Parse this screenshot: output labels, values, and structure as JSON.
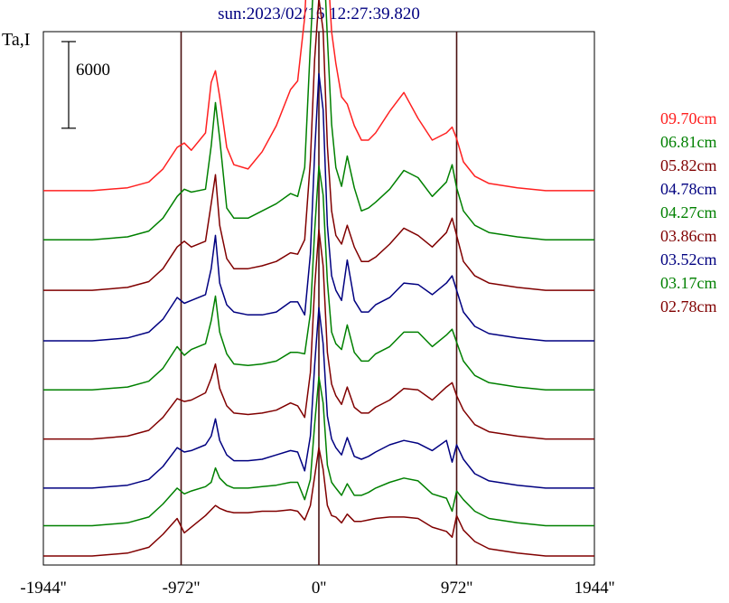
{
  "chart_data": {
    "type": "line",
    "title": "sun:2023/02/16 12:27:39.820",
    "title_color": "#000080",
    "ylabel": "Ta,I",
    "xlabel": "",
    "scale_bar": {
      "label": "6000",
      "value": 6000
    },
    "xlim": [
      -1944,
      1944
    ],
    "ylim": [
      0,
      36000
    ],
    "grid": false,
    "legend_position": "right",
    "x_ticks": [
      {
        "value": -1944,
        "label": "-1944''"
      },
      {
        "value": -972,
        "label": "-972''"
      },
      {
        "value": 0,
        "label": "0''"
      },
      {
        "value": 972,
        "label": "972''"
      },
      {
        "value": 1944,
        "label": "1944''"
      }
    ],
    "vlines": [
      -972,
      0,
      972
    ],
    "vline_color": "#4a1010",
    "x": [
      -1944,
      -1600,
      -1350,
      -1200,
      -1100,
      -1000,
      -950,
      -900,
      -800,
      -760,
      -730,
      -700,
      -650,
      -600,
      -500,
      -400,
      -300,
      -200,
      -150,
      -100,
      -60,
      -30,
      0,
      30,
      60,
      90,
      120,
      160,
      200,
      250,
      300,
      350,
      400,
      500,
      600,
      700,
      800,
      900,
      940,
      972,
      1020,
      1100,
      1200,
      1400,
      1600,
      1944
    ],
    "series": [
      {
        "name": "09.70cm",
        "color": "#ff2020",
        "offset": 25300,
        "values": [
          0,
          0,
          200,
          600,
          1500,
          3000,
          3300,
          2800,
          4000,
          7500,
          8300,
          6500,
          3000,
          1800,
          1500,
          2700,
          4500,
          7000,
          7600,
          12000,
          19500,
          21800,
          22500,
          20300,
          16000,
          11000,
          8800,
          6500,
          6000,
          4500,
          3500,
          3500,
          4000,
          5500,
          6800,
          5000,
          3500,
          4000,
          4400,
          3600,
          2000,
          1000,
          500,
          200,
          0,
          0
        ]
      },
      {
        "name": "06.81cm",
        "color": "#008000",
        "offset": 21900,
        "values": [
          0,
          0,
          200,
          600,
          1500,
          3000,
          3500,
          3300,
          3500,
          6500,
          9500,
          7000,
          2200,
          1500,
          1500,
          2000,
          2500,
          3200,
          3000,
          5000,
          13500,
          19500,
          22300,
          20500,
          14000,
          8000,
          5000,
          3700,
          5800,
          3600,
          2000,
          2200,
          2600,
          3500,
          4800,
          4300,
          3000,
          4000,
          5200,
          3600,
          2000,
          1000,
          500,
          200,
          0,
          0
        ]
      },
      {
        "name": "05.82cm",
        "color": "#800000",
        "offset": 18400,
        "values": [
          0,
          0,
          200,
          600,
          1500,
          3000,
          3400,
          3000,
          3400,
          6000,
          8000,
          4500,
          2200,
          1500,
          1500,
          1700,
          2000,
          2600,
          2500,
          3500,
          9000,
          16000,
          20200,
          18000,
          10000,
          5500,
          3800,
          3200,
          4500,
          3000,
          2000,
          2000,
          2300,
          3200,
          4300,
          3800,
          3000,
          4000,
          5000,
          3800,
          2000,
          1000,
          500,
          200,
          0,
          0
        ]
      },
      {
        "name": "04.78cm",
        "color": "#000080",
        "offset": 14900,
        "values": [
          0,
          0,
          200,
          600,
          1500,
          3000,
          2600,
          2800,
          3200,
          5000,
          7300,
          4000,
          2500,
          2000,
          1800,
          1800,
          2000,
          2700,
          2700,
          1800,
          6000,
          13000,
          18500,
          16000,
          8000,
          4500,
          3500,
          2800,
          5600,
          2800,
          2000,
          2000,
          2500,
          3000,
          4000,
          3900,
          3200,
          4000,
          4500,
          3500,
          2000,
          1000,
          500,
          200,
          0,
          0
        ]
      },
      {
        "name": "04.27cm",
        "color": "#008000",
        "offset": 11500,
        "values": [
          0,
          0,
          200,
          600,
          1500,
          3000,
          2400,
          2800,
          3200,
          4800,
          6500,
          4000,
          2500,
          1800,
          1700,
          1800,
          2000,
          2600,
          2600,
          2500,
          5300,
          11000,
          15500,
          13500,
          7500,
          4000,
          3200,
          2800,
          4500,
          2600,
          2000,
          2000,
          2500,
          3000,
          4000,
          4000,
          3000,
          3800,
          4200,
          3300,
          2000,
          1000,
          500,
          200,
          0,
          0
        ]
      },
      {
        "name": "03.86cm",
        "color": "#800000",
        "offset": 8100,
        "values": [
          0,
          0,
          200,
          600,
          1500,
          2800,
          2600,
          2700,
          3200,
          4200,
          5200,
          3500,
          2300,
          1800,
          1700,
          1800,
          2000,
          2500,
          2300,
          1500,
          4600,
          10500,
          14500,
          12000,
          6000,
          3800,
          3000,
          2400,
          3600,
          2200,
          1800,
          1800,
          2200,
          2700,
          3500,
          3400,
          2700,
          3600,
          3900,
          3000,
          2000,
          1000,
          500,
          200,
          0,
          0
        ]
      },
      {
        "name": "03.52cm",
        "color": "#000080",
        "offset": 4700,
        "values": [
          0,
          0,
          200,
          600,
          1500,
          2800,
          2500,
          2600,
          3000,
          3600,
          4800,
          3300,
          2300,
          1900,
          1900,
          2000,
          2300,
          2600,
          2500,
          1200,
          3600,
          8500,
          12500,
          10000,
          5000,
          3400,
          2800,
          2300,
          3500,
          2200,
          2000,
          2200,
          2500,
          3000,
          3300,
          3100,
          2600,
          3300,
          1800,
          3000,
          2000,
          1000,
          500,
          200,
          0,
          0
        ]
      },
      {
        "name": "03.17cm",
        "color": "#008000",
        "offset": 2100,
        "values": [
          0,
          0,
          200,
          600,
          1500,
          2600,
          2200,
          2400,
          2700,
          3000,
          4000,
          3300,
          2800,
          2600,
          2600,
          2700,
          2800,
          3000,
          3000,
          1800,
          3200,
          7000,
          10300,
          8500,
          4200,
          3000,
          2600,
          2100,
          2900,
          2100,
          2100,
          2300,
          2600,
          3000,
          3300,
          3100,
          2200,
          1900,
          1000,
          2400,
          1800,
          1000,
          500,
          200,
          0,
          0
        ]
      },
      {
        "name": "02.78cm",
        "color": "#800000",
        "offset": 0,
        "values": [
          0,
          0,
          200,
          600,
          1500,
          2600,
          1600,
          2000,
          2800,
          3200,
          3500,
          3300,
          3100,
          3000,
          3000,
          3100,
          3100,
          3200,
          3100,
          2500,
          3500,
          5500,
          7500,
          6000,
          3500,
          2800,
          2700,
          2300,
          2900,
          2400,
          2400,
          2500,
          2600,
          2700,
          2700,
          2600,
          2000,
          1700,
          1300,
          2800,
          1800,
          1000,
          500,
          200,
          0,
          0
        ]
      }
    ]
  }
}
